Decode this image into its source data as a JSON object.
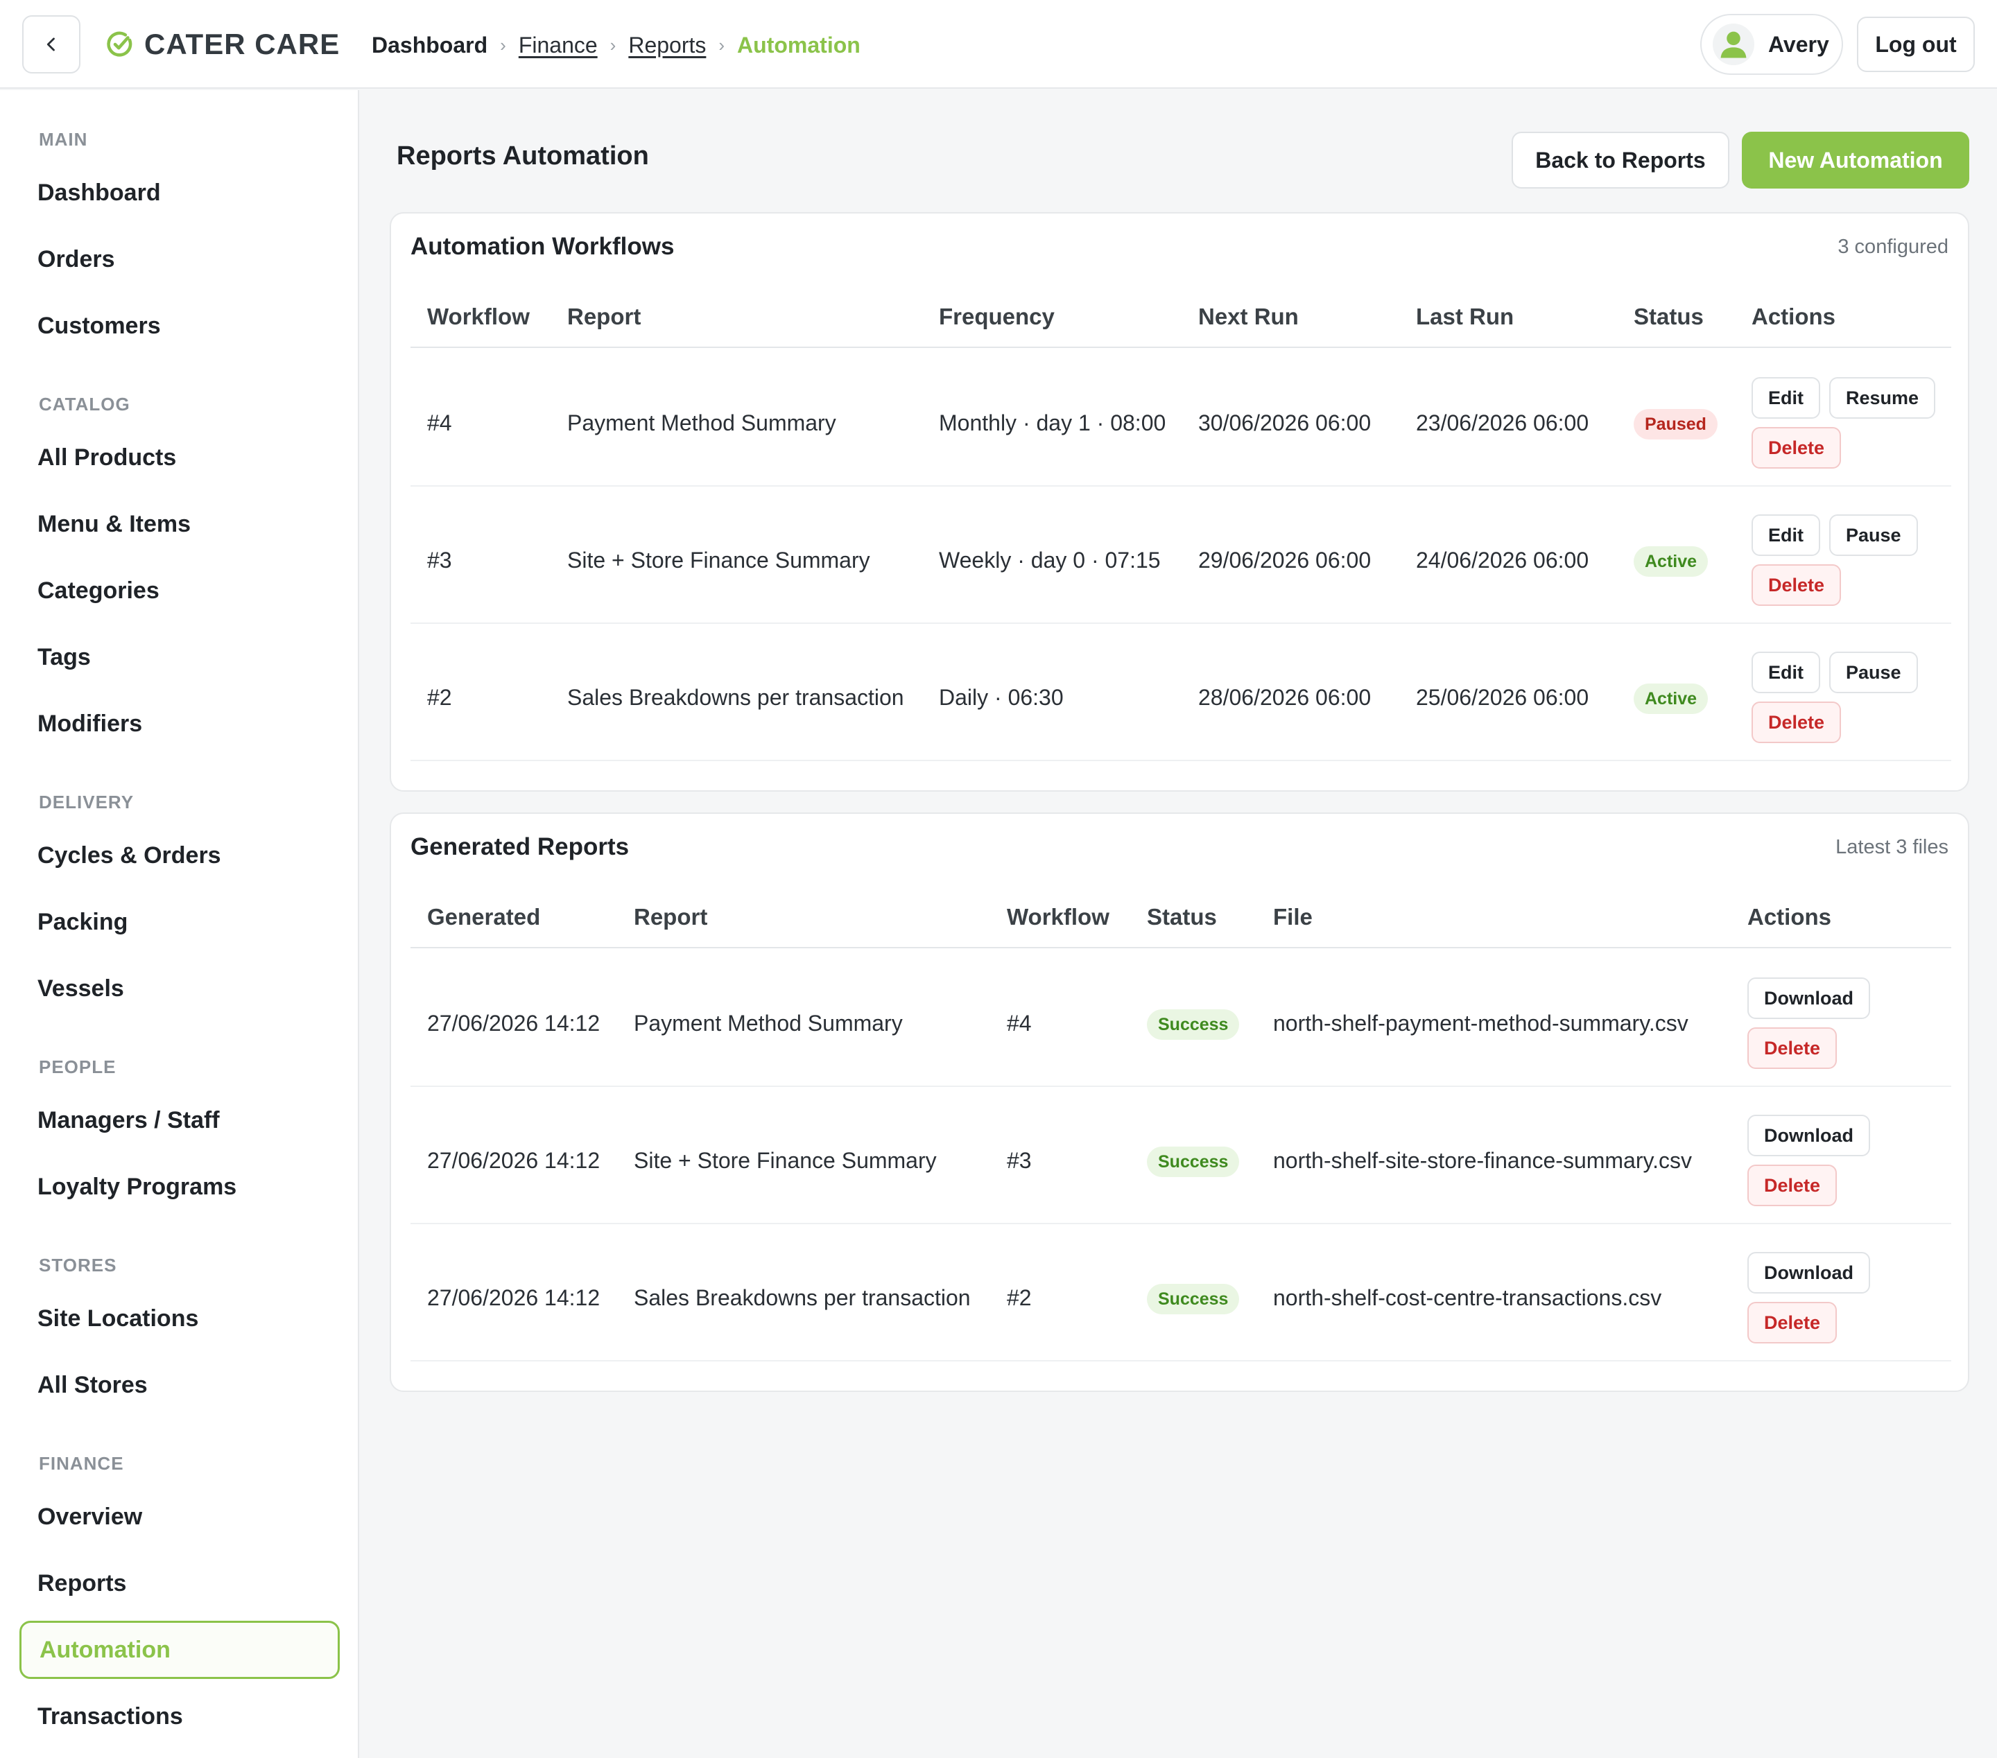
{
  "header": {
    "brand": "CATER CARE",
    "breadcrumb": [
      "Dashboard",
      "Finance",
      "Reports",
      "Automation"
    ],
    "user_name": "Avery",
    "logout_label": "Log out"
  },
  "sidebar": {
    "sections": [
      {
        "title": "MAIN",
        "items": [
          "Dashboard",
          "Orders",
          "Customers"
        ]
      },
      {
        "title": "CATALOG",
        "items": [
          "All Products",
          "Menu & Items",
          "Categories",
          "Tags",
          "Modifiers"
        ]
      },
      {
        "title": "DELIVERY",
        "items": [
          "Cycles & Orders",
          "Packing",
          "Vessels"
        ]
      },
      {
        "title": "PEOPLE",
        "items": [
          "Managers / Staff",
          "Loyalty Programs"
        ]
      },
      {
        "title": "STORES",
        "items": [
          "Site Locations",
          "All Stores"
        ]
      },
      {
        "title": "FINANCE",
        "items": [
          "Overview",
          "Reports",
          "Automation",
          "Transactions"
        ]
      }
    ],
    "active_item": "Automation"
  },
  "page": {
    "title": "Reports Automation",
    "back_label": "Back to Reports",
    "new_label": "New Automation"
  },
  "workflows": {
    "title": "Automation Workflows",
    "meta": "3 configured",
    "columns": [
      "Workflow",
      "Report",
      "Frequency",
      "Next Run",
      "Last Run",
      "Status",
      "Actions"
    ],
    "rows": [
      {
        "id": "#4",
        "report": "Payment Method Summary",
        "frequency": "Monthly · day 1 · 08:00",
        "next_run": "30/06/2026 06:00",
        "last_run": "23/06/2026 06:00",
        "status": "Paused",
        "toggle": "Resume",
        "edit": "Edit",
        "delete": "Delete"
      },
      {
        "id": "#3",
        "report": "Site + Store Finance Summary",
        "frequency": "Weekly · day 0 · 07:15",
        "next_run": "29/06/2026 06:00",
        "last_run": "24/06/2026 06:00",
        "status": "Active",
        "toggle": "Pause",
        "edit": "Edit",
        "delete": "Delete"
      },
      {
        "id": "#2",
        "report": "Sales Breakdowns per transaction",
        "frequency": "Daily · 06:30",
        "next_run": "28/06/2026 06:00",
        "last_run": "25/06/2026 06:00",
        "status": "Active",
        "toggle": "Pause",
        "edit": "Edit",
        "delete": "Delete"
      }
    ]
  },
  "generated": {
    "title": "Generated Reports",
    "meta": "Latest 3 files",
    "columns": [
      "Generated",
      "Report",
      "Workflow",
      "Status",
      "File",
      "Actions"
    ],
    "rows": [
      {
        "generated": "27/06/2026 14:12",
        "report": "Payment Method Summary",
        "workflow": "#4",
        "status": "Success",
        "file": "north-shelf-payment-method-summary.csv",
        "download": "Download",
        "delete": "Delete"
      },
      {
        "generated": "27/06/2026 14:12",
        "report": "Site + Store Finance Summary",
        "workflow": "#3",
        "status": "Success",
        "file": "north-shelf-site-store-finance-summary.csv",
        "download": "Download",
        "delete": "Delete"
      },
      {
        "generated": "27/06/2026 14:12",
        "report": "Sales Breakdowns per transaction",
        "workflow": "#2",
        "status": "Success",
        "file": "north-shelf-cost-centre-transactions.csv",
        "download": "Download",
        "delete": "Delete"
      }
    ]
  },
  "colors": {
    "accent": "#8bc34a",
    "danger": "#c62828",
    "success": "#3f8a1f"
  },
  "icons": {
    "back": "chevron-left-icon",
    "logo": "check-circle-icon",
    "avatar": "user-icon",
    "breadcrumb_sep": "chevron-right-icon"
  }
}
